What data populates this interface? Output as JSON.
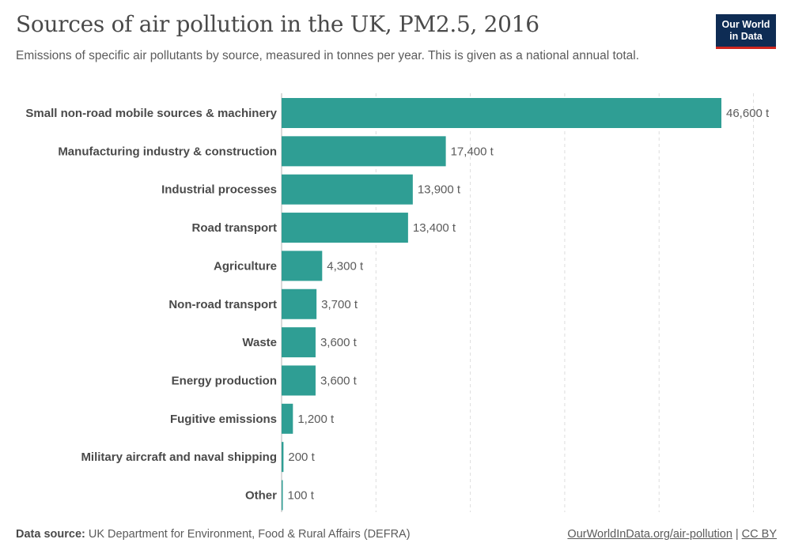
{
  "header": {
    "title": "Sources of air pollution in the UK, PM2.5, 2016",
    "subtitle": "Emissions of specific air pollutants by source, measured in tonnes per year. This is given as a national annual total.",
    "logo_line1": "Our World",
    "logo_line2": "in Data"
  },
  "footer": {
    "source_label": "Data source:",
    "source_text": "UK Department for Environment, Food & Rural Affairs (DEFRA)",
    "link_text": "OurWorldInData.org/air-pollution",
    "separator": "|",
    "license": "CC BY"
  },
  "colors": {
    "bar": "#2f9e94",
    "grid": "#dddddd",
    "axis": "#b5b5b5"
  },
  "chart_data": {
    "type": "bar",
    "orientation": "horizontal",
    "categories": [
      "Small non-road mobile sources & machinery",
      "Manufacturing industry & construction",
      "Industrial processes",
      "Road transport",
      "Agriculture",
      "Non-road transport",
      "Waste",
      "Energy production",
      "Fugitive emissions",
      "Military aircraft and naval shipping",
      "Other"
    ],
    "values": [
      46600,
      17400,
      13900,
      13400,
      4300,
      3700,
      3600,
      3600,
      1200,
      200,
      100
    ],
    "value_labels": [
      "46,600 t",
      "17,400 t",
      "13,900 t",
      "13,400 t",
      "4,300 t",
      "3,700 t",
      "3,600 t",
      "3,600 t",
      "1,200 t",
      "200 t",
      "100 t"
    ],
    "unit": "t",
    "xlim": [
      0,
      50000
    ],
    "grid": true
  }
}
